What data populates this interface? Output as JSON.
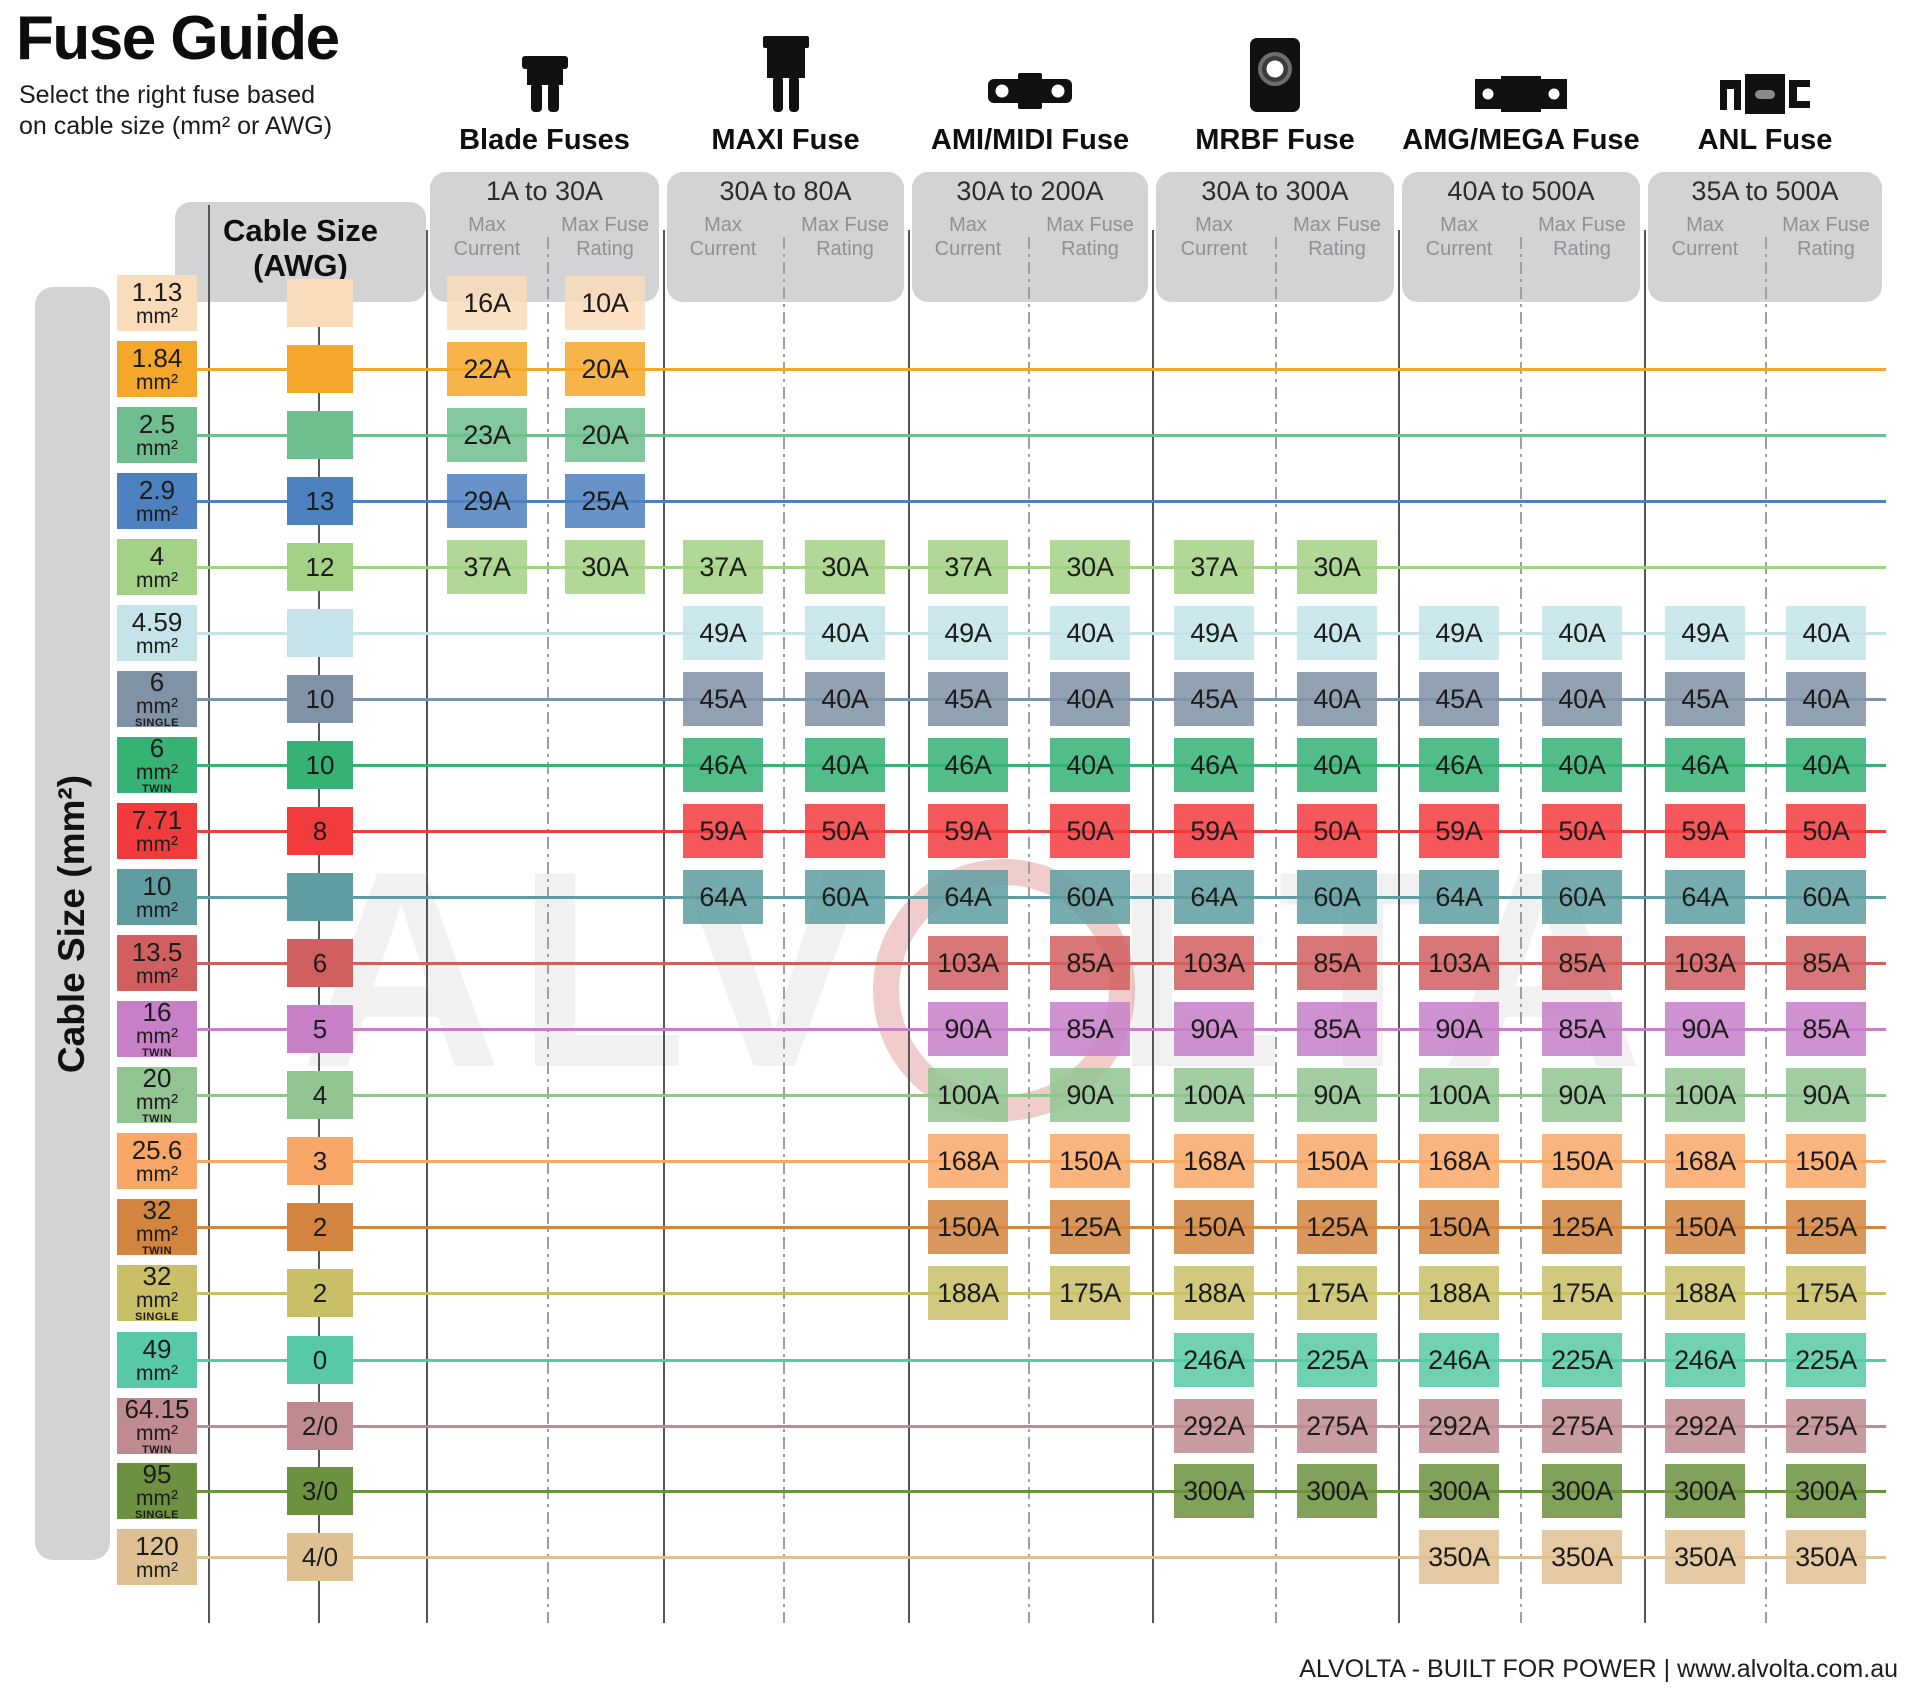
{
  "header": {
    "title": "Fuse Guide",
    "subtitle_line1": "Select the right fuse based",
    "subtitle_line2": "on cable size (mm² or AWG)"
  },
  "left_axis_label": "Cable Size (mm²)",
  "awg_header": {
    "line1": "Cable Size",
    "line2": "(AWG)"
  },
  "sub_headers": {
    "current_line1": "Max",
    "current_line2": "Current",
    "rating_line1": "Max Fuse",
    "rating_line2": "Rating"
  },
  "watermark": "ALVOLTA",
  "footer": {
    "text": "ALVOLTA - BUILT FOR POWER | www.alvolta.com.au"
  },
  "chart_data": {
    "type": "table",
    "row_unit": "mm²",
    "columns": [
      {
        "name": "Blade Fuses",
        "range": "1A to 30A",
        "icon": "blade-fuse-icon"
      },
      {
        "name": "MAXI Fuse",
        "range": "30A to 80A",
        "icon": "maxi-fuse-icon"
      },
      {
        "name": "AMI/MIDI Fuse",
        "range": "30A to 200A",
        "icon": "ami-midi-fuse-icon"
      },
      {
        "name": "MRBF Fuse",
        "range": "30A to 300A",
        "icon": "mrbf-fuse-icon"
      },
      {
        "name": "AMG/MEGA Fuse",
        "range": "40A to 500A",
        "icon": "amg-mega-fuse-icon"
      },
      {
        "name": "ANL Fuse",
        "range": "35A to 500A",
        "icon": "anl-fuse-icon"
      }
    ],
    "rows": [
      {
        "size": "1.13",
        "variant": "",
        "awg": "",
        "color": "#FBDCBA",
        "line": false,
        "fuses": [
          [
            "16A",
            "10A"
          ],
          null,
          null,
          null,
          null,
          null
        ]
      },
      {
        "size": "1.84",
        "variant": "",
        "awg": "",
        "color": "#F5A72B",
        "line": true,
        "fuses": [
          [
            "22A",
            "20A"
          ],
          null,
          null,
          null,
          null,
          null
        ]
      },
      {
        "size": "2.5",
        "variant": "",
        "awg": "",
        "color": "#6FBE8F",
        "line": true,
        "fuses": [
          [
            "23A",
            "20A"
          ],
          null,
          null,
          null,
          null,
          null
        ]
      },
      {
        "size": "2.9",
        "variant": "",
        "awg": "13",
        "color": "#4C80BE",
        "line": true,
        "fuses": [
          [
            "29A",
            "25A"
          ],
          null,
          null,
          null,
          null,
          null
        ]
      },
      {
        "size": "4",
        "variant": "",
        "awg": "12",
        "color": "#A3D185",
        "line": true,
        "fuses": [
          [
            "37A",
            "30A"
          ],
          [
            "37A",
            "30A"
          ],
          [
            "37A",
            "30A"
          ],
          [
            "37A",
            "30A"
          ],
          null,
          null
        ]
      },
      {
        "size": "4.59",
        "variant": "",
        "awg": "",
        "color": "#C4E4EA",
        "line": true,
        "fuses": [
          null,
          [
            "49A",
            "40A"
          ],
          [
            "49A",
            "40A"
          ],
          [
            "49A",
            "40A"
          ],
          [
            "49A",
            "40A"
          ],
          [
            "49A",
            "40A"
          ]
        ]
      },
      {
        "size": "6",
        "variant": "SINGLE",
        "awg": "10",
        "color": "#8092A5",
        "line": true,
        "fuses": [
          null,
          [
            "45A",
            "40A"
          ],
          [
            "45A",
            "40A"
          ],
          [
            "45A",
            "40A"
          ],
          [
            "45A",
            "40A"
          ],
          [
            "45A",
            "40A"
          ]
        ]
      },
      {
        "size": "6",
        "variant": "TWIN",
        "awg": "10",
        "color": "#35B274",
        "line": true,
        "fuses": [
          null,
          [
            "46A",
            "40A"
          ],
          [
            "46A",
            "40A"
          ],
          [
            "46A",
            "40A"
          ],
          [
            "46A",
            "40A"
          ],
          [
            "46A",
            "40A"
          ]
        ]
      },
      {
        "size": "7.71",
        "variant": "",
        "awg": "8",
        "color": "#F23B3D",
        "line": true,
        "fuses": [
          null,
          [
            "59A",
            "50A"
          ],
          [
            "59A",
            "50A"
          ],
          [
            "59A",
            "50A"
          ],
          [
            "59A",
            "50A"
          ],
          [
            "59A",
            "50A"
          ]
        ]
      },
      {
        "size": "10",
        "variant": "",
        "awg": "",
        "color": "#5F9DA0",
        "line": true,
        "fuses": [
          null,
          [
            "64A",
            "60A"
          ],
          [
            "64A",
            "60A"
          ],
          [
            "64A",
            "60A"
          ],
          [
            "64A",
            "60A"
          ],
          [
            "64A",
            "60A"
          ]
        ]
      },
      {
        "size": "13.5",
        "variant": "",
        "awg": "6",
        "color": "#D15F5F",
        "line": true,
        "fuses": [
          null,
          null,
          [
            "103A",
            "85A"
          ],
          [
            "103A",
            "85A"
          ],
          [
            "103A",
            "85A"
          ],
          [
            "103A",
            "85A"
          ]
        ]
      },
      {
        "size": "16",
        "variant": "TWIN",
        "awg": "5",
        "color": "#C77FC8",
        "line": true,
        "fuses": [
          null,
          null,
          [
            "90A",
            "85A"
          ],
          [
            "90A",
            "85A"
          ],
          [
            "90A",
            "85A"
          ],
          [
            "90A",
            "85A"
          ]
        ]
      },
      {
        "size": "20",
        "variant": "TWIN",
        "awg": "4",
        "color": "#92C492",
        "line": true,
        "fuses": [
          null,
          null,
          [
            "100A",
            "90A"
          ],
          [
            "100A",
            "90A"
          ],
          [
            "100A",
            "90A"
          ],
          [
            "100A",
            "90A"
          ]
        ]
      },
      {
        "size": "25.6",
        "variant": "",
        "awg": "3",
        "color": "#F9A766",
        "line": true,
        "fuses": [
          null,
          null,
          [
            "168A",
            "150A"
          ],
          [
            "168A",
            "150A"
          ],
          [
            "168A",
            "150A"
          ],
          [
            "168A",
            "150A"
          ]
        ]
      },
      {
        "size": "32",
        "variant": "TWIN",
        "awg": "2",
        "color": "#D3853F",
        "line": true,
        "fuses": [
          null,
          null,
          [
            "150A",
            "125A"
          ],
          [
            "150A",
            "125A"
          ],
          [
            "150A",
            "125A"
          ],
          [
            "150A",
            "125A"
          ]
        ]
      },
      {
        "size": "32",
        "variant": "SINGLE",
        "awg": "2",
        "color": "#C8BF67",
        "line": true,
        "fuses": [
          null,
          null,
          [
            "188A",
            "175A"
          ],
          [
            "188A",
            "175A"
          ],
          [
            "188A",
            "175A"
          ],
          [
            "188A",
            "175A"
          ]
        ]
      },
      {
        "size": "49",
        "variant": "",
        "awg": "0",
        "color": "#58C9A6",
        "line": true,
        "fuses": [
          null,
          null,
          null,
          [
            "246A",
            "225A"
          ],
          [
            "246A",
            "225A"
          ],
          [
            "246A",
            "225A"
          ]
        ]
      },
      {
        "size": "64.15",
        "variant": "TWIN",
        "awg": "2/0",
        "color": "#C08B90",
        "line": true,
        "fuses": [
          null,
          null,
          null,
          [
            "292A",
            "275A"
          ],
          [
            "292A",
            "275A"
          ],
          [
            "292A",
            "275A"
          ]
        ]
      },
      {
        "size": "95",
        "variant": "SINGLE",
        "awg": "3/0",
        "color": "#6C9240",
        "line": true,
        "fuses": [
          null,
          null,
          null,
          [
            "300A",
            "300A"
          ],
          [
            "300A",
            "300A"
          ],
          [
            "300A",
            "300A"
          ]
        ]
      },
      {
        "size": "120",
        "variant": "",
        "awg": "4/0",
        "color": "#DFC093",
        "line": true,
        "fuses": [
          null,
          null,
          null,
          null,
          [
            "350A",
            "350A"
          ],
          [
            "350A",
            "350A"
          ]
        ]
      }
    ]
  }
}
